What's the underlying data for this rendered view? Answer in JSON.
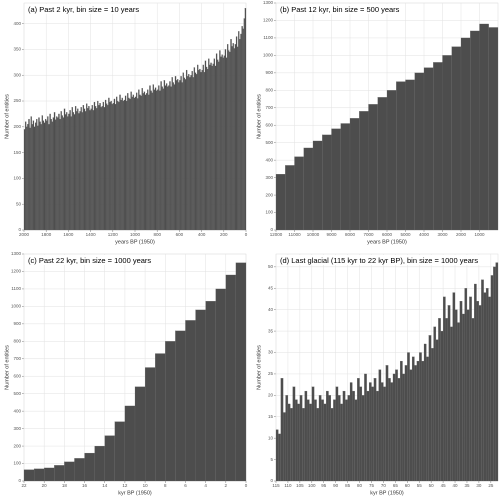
{
  "chart_data": [
    {
      "type": "histogram",
      "title": "(a) Past 2 kyr, bin size = 10 years",
      "xlabel": "years BP (1950)",
      "ylabel": "Number of entities",
      "color": "#4d4d4d",
      "grid": true,
      "xlim": [
        2000,
        0
      ],
      "ylim": [
        0,
        440
      ],
      "xticks": [
        2000,
        1800,
        1600,
        1400,
        1200,
        1000,
        800,
        600,
        400,
        200,
        0
      ],
      "yticks": [
        0,
        50,
        100,
        150,
        200,
        250,
        300,
        350,
        400
      ],
      "bins": [
        2000,
        1990,
        1980,
        1970,
        1960,
        1950,
        1940,
        1930,
        1920,
        1910,
        1900,
        1890,
        1880,
        1870,
        1860,
        1850,
        1840,
        1830,
        1820,
        1810,
        1800,
        1790,
        1780,
        1770,
        1760,
        1750,
        1740,
        1730,
        1720,
        1710,
        1700,
        1690,
        1680,
        1670,
        1660,
        1650,
        1640,
        1630,
        1620,
        1610,
        1600,
        1590,
        1580,
        1570,
        1560,
        1550,
        1540,
        1530,
        1520,
        1510,
        1500,
        1490,
        1480,
        1470,
        1460,
        1450,
        1440,
        1430,
        1420,
        1410,
        1400,
        1390,
        1380,
        1370,
        1360,
        1350,
        1340,
        1330,
        1320,
        1310,
        1300,
        1290,
        1280,
        1270,
        1260,
        1250,
        1240,
        1230,
        1220,
        1210,
        1200,
        1190,
        1180,
        1170,
        1160,
        1150,
        1140,
        1130,
        1120,
        1110,
        1100,
        1090,
        1080,
        1070,
        1060,
        1050,
        1040,
        1030,
        1020,
        1010,
        1000,
        990,
        980,
        970,
        960,
        950,
        940,
        930,
        920,
        910,
        900,
        890,
        880,
        870,
        860,
        850,
        840,
        830,
        820,
        810,
        800,
        790,
        780,
        770,
        760,
        750,
        740,
        730,
        720,
        710,
        700,
        690,
        680,
        670,
        660,
        650,
        640,
        630,
        620,
        610,
        600,
        590,
        580,
        570,
        560,
        550,
        540,
        530,
        520,
        510,
        500,
        490,
        480,
        470,
        460,
        450,
        440,
        430,
        420,
        410,
        400,
        390,
        380,
        370,
        360,
        350,
        340,
        330,
        320,
        310,
        300,
        290,
        280,
        270,
        260,
        250,
        240,
        230,
        220,
        210,
        200,
        190,
        180,
        170,
        160,
        150,
        140,
        130,
        120,
        110,
        100,
        90,
        80,
        70,
        60,
        50,
        40,
        30,
        20,
        10,
        0
      ],
      "values": [
        195,
        210,
        200,
        205,
        215,
        198,
        220,
        205,
        212,
        200,
        208,
        215,
        202,
        218,
        210,
        205,
        222,
        212,
        208,
        215,
        212,
        220,
        205,
        225,
        215,
        210,
        218,
        228,
        214,
        220,
        218,
        225,
        215,
        230,
        222,
        218,
        235,
        224,
        228,
        220,
        225,
        232,
        220,
        238,
        228,
        224,
        240,
        230,
        235,
        226,
        230,
        238,
        228,
        242,
        235,
        230,
        245,
        236,
        240,
        232,
        235,
        242,
        232,
        248,
        240,
        236,
        250,
        242,
        246,
        238,
        240,
        248,
        238,
        252,
        245,
        242,
        256,
        248,
        250,
        244,
        246,
        254,
        244,
        258,
        250,
        248,
        262,
        252,
        256,
        250,
        252,
        260,
        250,
        265,
        256,
        254,
        268,
        258,
        262,
        256,
        258,
        266,
        255,
        272,
        262,
        260,
        275,
        265,
        268,
        262,
        265,
        272,
        262,
        280,
        270,
        266,
        282,
        272,
        276,
        270,
        272,
        280,
        270,
        288,
        278,
        274,
        290,
        280,
        284,
        278,
        280,
        288,
        278,
        296,
        286,
        282,
        298,
        290,
        292,
        286,
        290,
        298,
        286,
        305,
        295,
        292,
        310,
        298,
        302,
        296,
        300,
        308,
        296,
        315,
        305,
        302,
        320,
        310,
        312,
        306,
        310,
        320,
        306,
        328,
        316,
        312,
        332,
        320,
        324,
        318,
        322,
        332,
        318,
        342,
        330,
        326,
        348,
        336,
        340,
        334,
        338,
        350,
        334,
        360,
        348,
        345,
        370,
        356,
        362,
        352,
        360,
        375,
        355,
        385,
        370,
        380,
        395,
        390,
        410,
        430
      ]
    },
    {
      "type": "histogram",
      "title": "(b) Past 12 kyr, bin size = 500 years",
      "xlabel": "years BP (1950)",
      "ylabel": "Number of entities",
      "color": "#4d4d4d",
      "grid": true,
      "xlim": [
        12000,
        0
      ],
      "ylim": [
        0,
        1300
      ],
      "xticks": [
        12000,
        11000,
        10000,
        9000,
        8000,
        7000,
        6000,
        5000,
        4000,
        3000,
        2000,
        1000
      ],
      "yticks": [
        0,
        100,
        200,
        300,
        400,
        500,
        600,
        700,
        800,
        900,
        1000,
        1100,
        1200,
        1300
      ],
      "bins": [
        12000,
        11500,
        11000,
        10500,
        10000,
        9500,
        9000,
        8500,
        8000,
        7500,
        7000,
        6500,
        6000,
        5500,
        5000,
        4500,
        4000,
        3500,
        3000,
        2500,
        2000,
        1500,
        1000,
        500,
        0
      ],
      "values": [
        320,
        370,
        420,
        470,
        510,
        545,
        580,
        610,
        640,
        680,
        720,
        760,
        800,
        850,
        860,
        900,
        930,
        960,
        1000,
        1050,
        1100,
        1140,
        1180,
        1160
      ]
    },
    {
      "type": "histogram",
      "title": "(c) Past 22 kyr, bin size = 1000 years",
      "xlabel": "kyr BP (1950)",
      "ylabel": "Number of entities",
      "color": "#4d4d4d",
      "grid": true,
      "xlim": [
        22,
        0
      ],
      "ylim": [
        0,
        1300
      ],
      "xticks": [
        22,
        20,
        18,
        16,
        14,
        12,
        10,
        8,
        6,
        4,
        2,
        0
      ],
      "yticks": [
        0,
        100,
        200,
        300,
        400,
        500,
        600,
        700,
        800,
        900,
        1000,
        1100,
        1200,
        1300
      ],
      "bins": [
        22,
        21,
        20,
        19,
        18,
        17,
        16,
        15,
        14,
        13,
        12,
        11,
        10,
        9,
        8,
        7,
        6,
        5,
        4,
        3,
        2,
        1,
        0
      ],
      "values": [
        65,
        70,
        75,
        90,
        110,
        130,
        160,
        200,
        260,
        340,
        430,
        540,
        650,
        730,
        800,
        860,
        920,
        980,
        1030,
        1100,
        1180,
        1250
      ]
    },
    {
      "type": "histogram",
      "title": "(d) Last glacial (115 kyr to 22 kyr BP), bin size = 1000 years",
      "xlabel": "kyr BP (1950)",
      "ylabel": "Number of entities",
      "color": "#4d4d4d",
      "grid": true,
      "xlim": [
        115,
        22
      ],
      "ylim": [
        0,
        53
      ],
      "xticks": [
        115,
        110,
        105,
        100,
        95,
        90,
        85,
        80,
        75,
        70,
        65,
        60,
        55,
        50,
        45,
        40,
        35,
        30,
        25
      ],
      "yticks": [
        0,
        5,
        10,
        15,
        20,
        25,
        30,
        35,
        40,
        45,
        50
      ],
      "bins": [
        115,
        114,
        113,
        112,
        111,
        110,
        109,
        108,
        107,
        106,
        105,
        104,
        103,
        102,
        101,
        100,
        99,
        98,
        97,
        96,
        95,
        94,
        93,
        92,
        91,
        90,
        89,
        88,
        87,
        86,
        85,
        84,
        83,
        82,
        81,
        80,
        79,
        78,
        77,
        76,
        75,
        74,
        73,
        72,
        71,
        70,
        69,
        68,
        67,
        66,
        65,
        64,
        63,
        62,
        61,
        60,
        59,
        58,
        57,
        56,
        55,
        54,
        53,
        52,
        51,
        50,
        49,
        48,
        47,
        46,
        45,
        44,
        43,
        42,
        41,
        40,
        39,
        38,
        37,
        36,
        35,
        34,
        33,
        32,
        31,
        30,
        29,
        28,
        27,
        26,
        25,
        24,
        23,
        22
      ],
      "values": [
        12,
        11,
        24,
        16,
        20,
        18,
        17,
        22,
        19,
        18,
        20,
        17,
        21,
        19,
        18,
        22,
        19,
        17,
        20,
        19,
        18,
        21,
        20,
        17,
        19,
        22,
        20,
        18,
        21,
        19,
        20,
        23,
        21,
        19,
        24,
        22,
        20,
        25,
        21,
        23,
        22,
        24,
        21,
        26,
        23,
        22,
        27,
        24,
        23,
        25,
        26,
        24,
        28,
        25,
        27,
        30,
        26,
        29,
        27,
        28,
        30,
        28,
        32,
        29,
        34,
        31,
        36,
        33,
        38,
        35,
        43,
        38,
        41,
        36,
        44,
        40,
        37,
        42,
        39,
        45,
        40,
        43,
        38,
        46,
        42,
        41,
        47,
        44,
        45,
        43,
        48,
        50,
        51
      ]
    }
  ]
}
